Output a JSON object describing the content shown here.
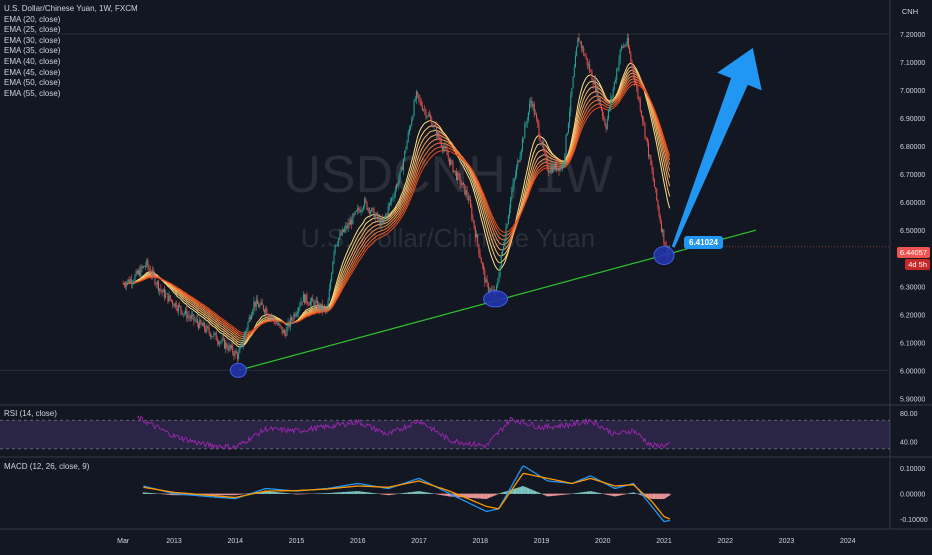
{
  "chart_data": {
    "type": "candlestick",
    "symbol": "U.S. Dollar/Chinese Yuan, 1W, FXCM",
    "watermark_ticker": "USDCNH, 1W",
    "watermark_name": "U.S. Dollar/Chinese Yuan",
    "currency": "CNH",
    "indicators": [
      "EMA (20, close)",
      "EMA (25, close)",
      "EMA (30, close)",
      "EMA (35, close)",
      "EMA (40, close)",
      "EMA (45, close)",
      "EMA (50, close)",
      "EMA (55, close)"
    ],
    "x_ticks": [
      "Mar",
      "2013",
      "2014",
      "2015",
      "2016",
      "2017",
      "2018",
      "2019",
      "2020",
      "2021",
      "2022",
      "2023",
      "2024"
    ],
    "y_ticks": [
      "7.20000",
      "7.10000",
      "7.00000",
      "6.90000",
      "6.80000",
      "6.70000",
      "6.60000",
      "6.50000",
      "6.30000",
      "6.20000",
      "6.10000",
      "6.00000",
      "5.90000"
    ],
    "y_ticks_values": [
      7.2,
      7.1,
      7.0,
      6.9,
      6.8,
      6.7,
      6.6,
      6.5,
      6.3,
      6.2,
      6.1,
      6.0,
      5.9
    ],
    "ylim": [
      5.88,
      7.3
    ],
    "price_series": [
      {
        "x": 2012.17,
        "y": 6.31
      },
      {
        "x": 2012.35,
        "y": 6.33
      },
      {
        "x": 2012.55,
        "y": 6.38
      },
      {
        "x": 2012.8,
        "y": 6.28
      },
      {
        "x": 2013.2,
        "y": 6.2
      },
      {
        "x": 2013.5,
        "y": 6.15
      },
      {
        "x": 2013.9,
        "y": 6.08
      },
      {
        "x": 2014.05,
        "y": 6.05
      },
      {
        "x": 2014.3,
        "y": 6.24
      },
      {
        "x": 2014.5,
        "y": 6.22
      },
      {
        "x": 2014.8,
        "y": 6.13
      },
      {
        "x": 2015.1,
        "y": 6.26
      },
      {
        "x": 2015.5,
        "y": 6.21
      },
      {
        "x": 2015.62,
        "y": 6.45
      },
      {
        "x": 2015.95,
        "y": 6.55
      },
      {
        "x": 2016.1,
        "y": 6.6
      },
      {
        "x": 2016.4,
        "y": 6.52
      },
      {
        "x": 2016.7,
        "y": 6.7
      },
      {
        "x": 2016.95,
        "y": 6.98
      },
      {
        "x": 2017.2,
        "y": 6.89
      },
      {
        "x": 2017.6,
        "y": 6.7
      },
      {
        "x": 2017.8,
        "y": 6.62
      },
      {
        "x": 2018.1,
        "y": 6.3
      },
      {
        "x": 2018.25,
        "y": 6.27
      },
      {
        "x": 2018.5,
        "y": 6.62
      },
      {
        "x": 2018.83,
        "y": 6.97
      },
      {
        "x": 2019.1,
        "y": 6.72
      },
      {
        "x": 2019.35,
        "y": 6.73
      },
      {
        "x": 2019.6,
        "y": 7.19
      },
      {
        "x": 2019.9,
        "y": 7.0
      },
      {
        "x": 2020.05,
        "y": 6.87
      },
      {
        "x": 2020.3,
        "y": 7.15
      },
      {
        "x": 2020.4,
        "y": 7.17
      },
      {
        "x": 2020.65,
        "y": 6.9
      },
      {
        "x": 2020.95,
        "y": 6.52
      },
      {
        "x": 2021.05,
        "y": 6.42
      },
      {
        "x": 2021.1,
        "y": 6.44
      }
    ],
    "trendline": {
      "from": {
        "x": 2014.05,
        "y": 6.0
      },
      "to": {
        "x": 2022.5,
        "y": 6.5
      }
    },
    "last_price": "6.44057",
    "countdown": "4d 5h",
    "callout_value": "6.41024",
    "rsi": {
      "label": "RSI (14, close)",
      "y_ticks": [
        "80.00",
        "40.00"
      ],
      "y_ticks_values": [
        80,
        40
      ],
      "ylim": [
        20,
        90
      ],
      "bands": [
        70,
        30
      ],
      "values": [
        {
          "x": 2012.4,
          "y": 74
        },
        {
          "x": 2013.0,
          "y": 48
        },
        {
          "x": 2013.5,
          "y": 36
        },
        {
          "x": 2014.0,
          "y": 32
        },
        {
          "x": 2014.5,
          "y": 58
        },
        {
          "x": 2015.0,
          "y": 55
        },
        {
          "x": 2015.6,
          "y": 62
        },
        {
          "x": 2016.0,
          "y": 68
        },
        {
          "x": 2016.5,
          "y": 50
        },
        {
          "x": 2017.0,
          "y": 70
        },
        {
          "x": 2017.5,
          "y": 42
        },
        {
          "x": 2018.1,
          "y": 34
        },
        {
          "x": 2018.5,
          "y": 72
        },
        {
          "x": 2019.0,
          "y": 60
        },
        {
          "x": 2019.5,
          "y": 64
        },
        {
          "x": 2019.8,
          "y": 70
        },
        {
          "x": 2020.2,
          "y": 50
        },
        {
          "x": 2020.5,
          "y": 56
        },
        {
          "x": 2020.8,
          "y": 34
        },
        {
          "x": 2021.1,
          "y": 36
        }
      ]
    },
    "macd": {
      "label": "MACD (12, 26, close, 9)",
      "y_ticks": [
        "0.10000",
        "0.00000",
        "-0.10000"
      ],
      "y_ticks_values": [
        0.1,
        0.0,
        -0.1
      ],
      "ylim": [
        -0.135,
        0.14
      ],
      "macd_line": [
        {
          "x": 2012.5,
          "y": 0.03
        },
        {
          "x": 2013.0,
          "y": 0.0
        },
        {
          "x": 2013.5,
          "y": -0.01
        },
        {
          "x": 2014.0,
          "y": -0.02
        },
        {
          "x": 2014.5,
          "y": 0.02
        },
        {
          "x": 2015.0,
          "y": 0.01
        },
        {
          "x": 2015.5,
          "y": 0.02
        },
        {
          "x": 2016.0,
          "y": 0.04
        },
        {
          "x": 2016.5,
          "y": 0.02
        },
        {
          "x": 2017.0,
          "y": 0.06
        },
        {
          "x": 2017.5,
          "y": 0.0
        },
        {
          "x": 2018.1,
          "y": -0.07
        },
        {
          "x": 2018.3,
          "y": -0.06
        },
        {
          "x": 2018.7,
          "y": 0.11
        },
        {
          "x": 2019.1,
          "y": 0.05
        },
        {
          "x": 2019.5,
          "y": 0.04
        },
        {
          "x": 2019.8,
          "y": 0.07
        },
        {
          "x": 2020.2,
          "y": 0.02
        },
        {
          "x": 2020.5,
          "y": 0.04
        },
        {
          "x": 2020.8,
          "y": -0.05
        },
        {
          "x": 2021.0,
          "y": -0.11
        },
        {
          "x": 2021.1,
          "y": -0.105
        }
      ],
      "signal_line": [
        {
          "x": 2012.5,
          "y": 0.025
        },
        {
          "x": 2013.0,
          "y": 0.005
        },
        {
          "x": 2013.5,
          "y": -0.005
        },
        {
          "x": 2014.0,
          "y": -0.015
        },
        {
          "x": 2014.5,
          "y": 0.01
        },
        {
          "x": 2015.0,
          "y": 0.012
        },
        {
          "x": 2015.5,
          "y": 0.018
        },
        {
          "x": 2016.0,
          "y": 0.03
        },
        {
          "x": 2016.5,
          "y": 0.025
        },
        {
          "x": 2017.0,
          "y": 0.05
        },
        {
          "x": 2017.5,
          "y": 0.01
        },
        {
          "x": 2018.1,
          "y": -0.05
        },
        {
          "x": 2018.3,
          "y": -0.06
        },
        {
          "x": 2018.7,
          "y": 0.08
        },
        {
          "x": 2019.1,
          "y": 0.06
        },
        {
          "x": 2019.5,
          "y": 0.04
        },
        {
          "x": 2019.8,
          "y": 0.06
        },
        {
          "x": 2020.2,
          "y": 0.03
        },
        {
          "x": 2020.5,
          "y": 0.035
        },
        {
          "x": 2020.8,
          "y": -0.03
        },
        {
          "x": 2021.0,
          "y": -0.09
        },
        {
          "x": 2021.1,
          "y": -0.1
        }
      ]
    },
    "colors": {
      "background": "#131722",
      "bull": "#26a69a",
      "bear": "#ef5350",
      "ema_light": "#ffe082",
      "ema_dark": "#e64a19",
      "trendline": "#2ec42e",
      "arrow": "#2196f3",
      "circle": "#2233aa",
      "rsi": "#9c27b0",
      "macd": "#2196f3",
      "signal": "#ff9800"
    }
  }
}
